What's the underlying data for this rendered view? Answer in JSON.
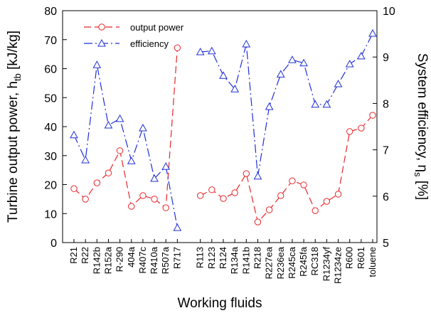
{
  "chart_data": {
    "type": "line",
    "xlabel": "Working fluids",
    "ylabel": "Turbine output power, h",
    "ylabel_sub": "tb",
    "ylabel_end": " [kJ/kg]",
    "y2label": "System efficiency, η",
    "y2label_sub": "s",
    "y2label_end": " [%]",
    "categories": [
      "R21",
      "R22",
      "R142b",
      "R152a",
      "R-290",
      "404a",
      "R407c",
      "R410a",
      "R507a",
      "R717",
      null,
      "R113",
      "R123",
      "R124",
      "R134a",
      "R141b",
      "R218",
      "R227ea",
      "R236ea",
      "R245ca",
      "R245fa",
      "RC318",
      "R1234yf",
      "R1234ze",
      "R600",
      "R601",
      "toluene"
    ],
    "series": [
      {
        "name": "output power",
        "color": "#e8262a",
        "marker": "circle",
        "values": [
          18.6,
          15,
          20.6,
          24,
          31.7,
          12.5,
          16.2,
          15,
          12,
          67.2,
          null,
          16.2,
          18.2,
          15.2,
          17.2,
          23.8,
          7.1,
          11.3,
          16.2,
          21.3,
          19.9,
          11,
          14.2,
          16.7,
          38.3,
          39.5,
          43.9
        ]
      },
      {
        "name": "efficiency",
        "color": "#1f2fd6",
        "marker": "triangle",
        "axis": "y2",
        "values": [
          7.32,
          6.78,
          8.83,
          7.53,
          7.67,
          6.76,
          7.47,
          6.38,
          6.64,
          5.32,
          null,
          9.11,
          9.13,
          8.6,
          8.31,
          9.28,
          6.43,
          7.93,
          8.63,
          8.94,
          8.87,
          7.98,
          7.98,
          8.42,
          8.85,
          9.02,
          9.51
        ]
      }
    ],
    "ylim": [
      0,
      80
    ],
    "yticks": [
      0,
      10,
      20,
      30,
      40,
      50,
      60,
      70,
      80
    ],
    "y2lim": [
      5,
      10
    ],
    "y2ticks": [
      5,
      6,
      7,
      8,
      9,
      10
    ],
    "legend": "upper left"
  }
}
